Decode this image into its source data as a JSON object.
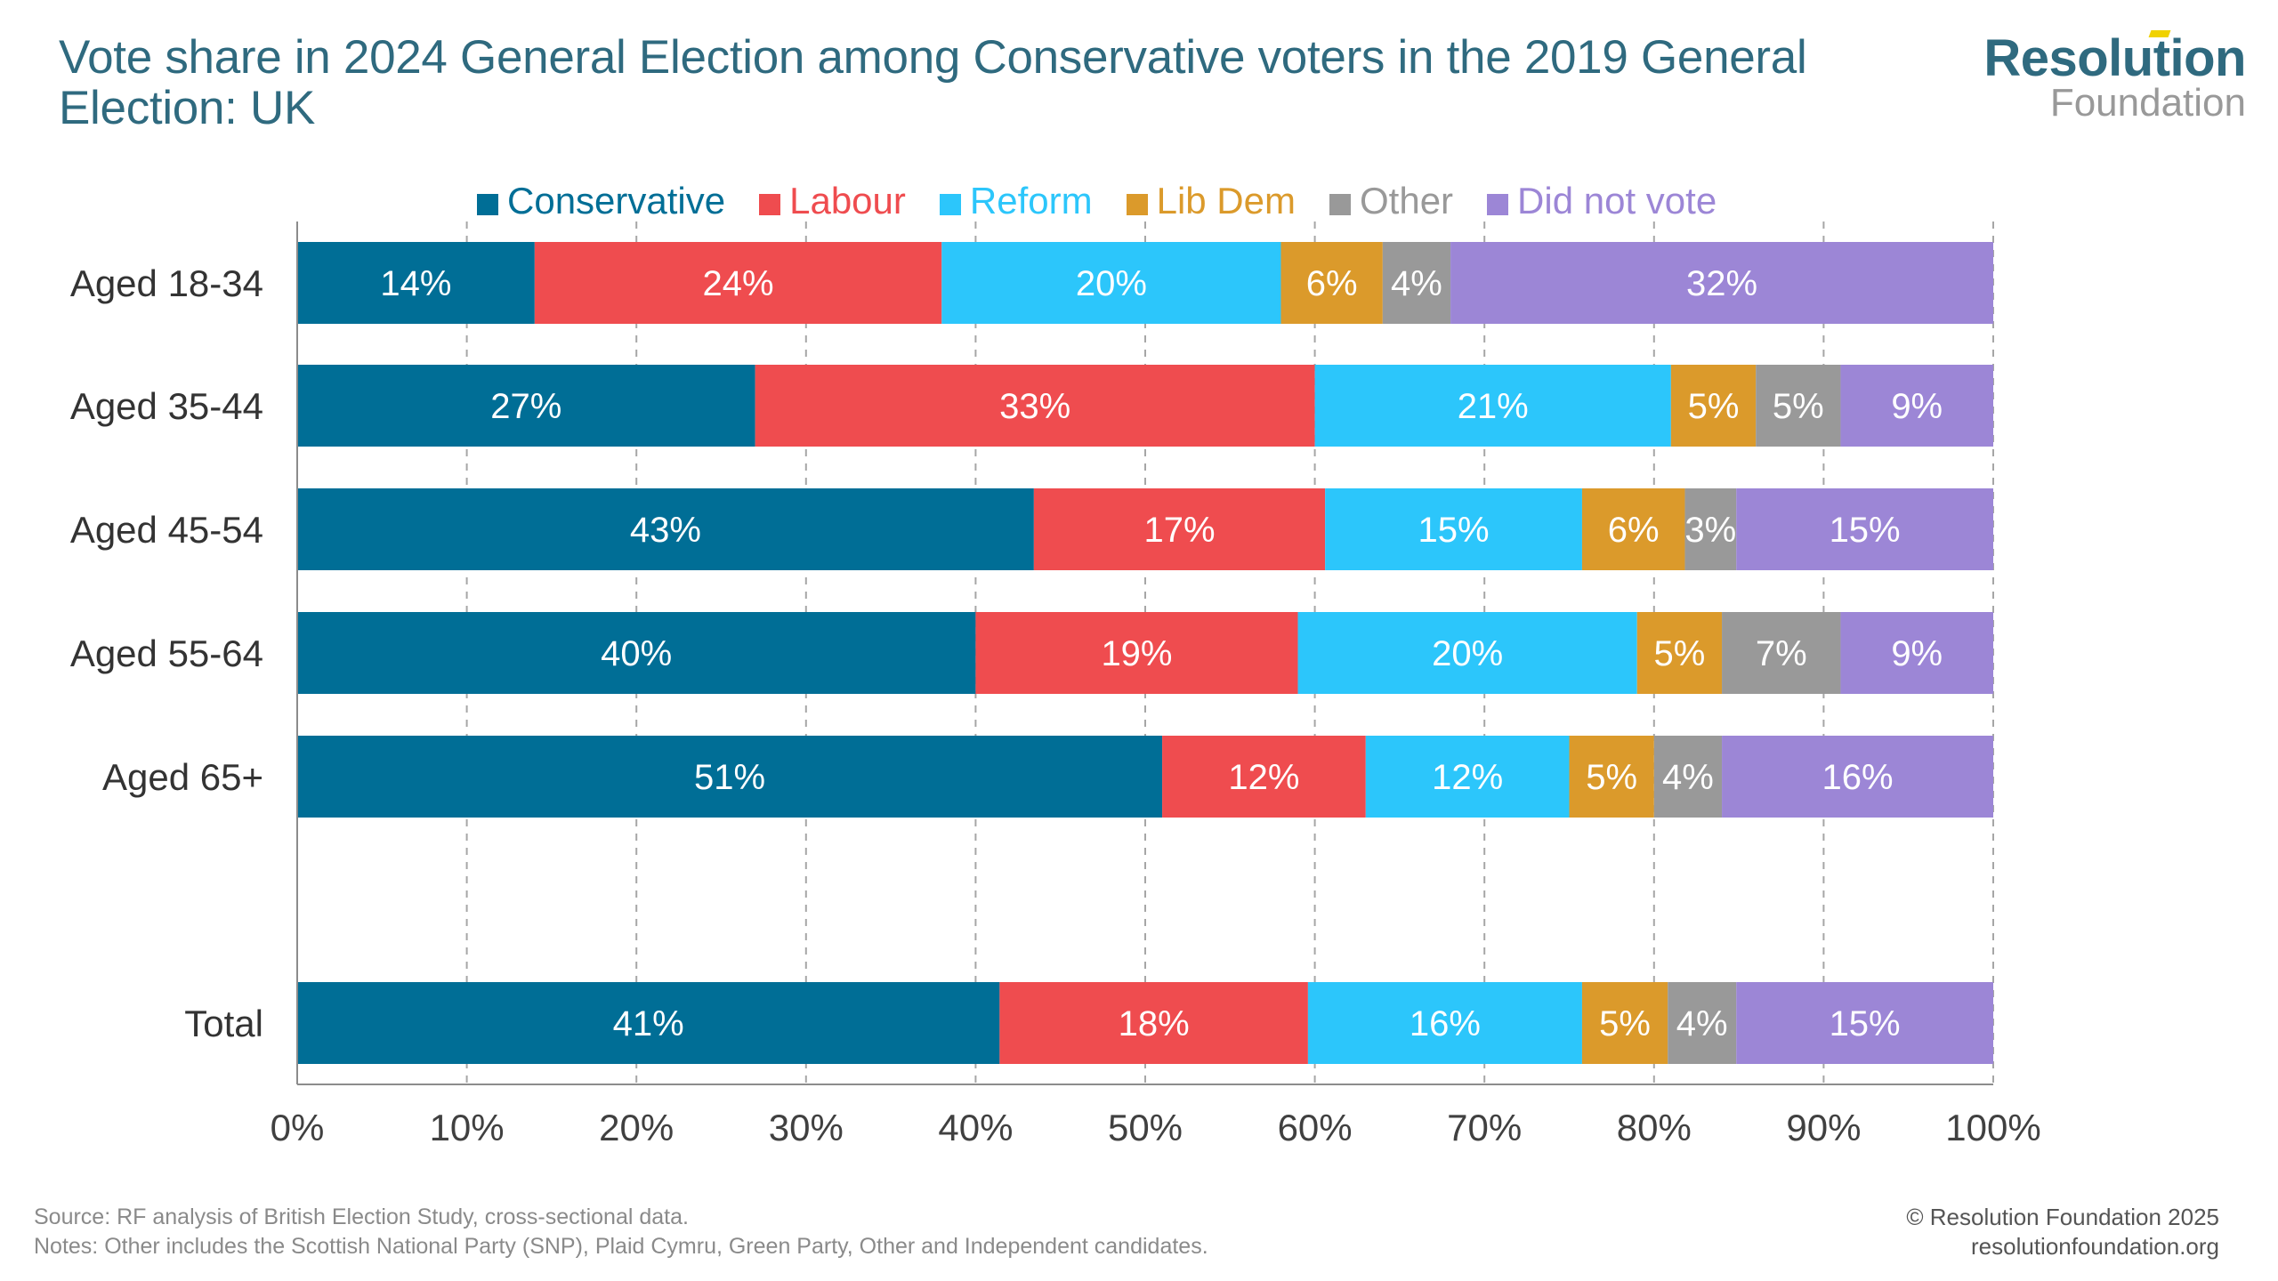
{
  "header": {
    "title": "Vote share in 2024 General Election among Conservative voters in the 2019 General Election: UK",
    "logo_top": "Resolution",
    "logo_bottom": "Foundation"
  },
  "footer": {
    "source": "Source: RF analysis of British Election Study, cross-sectional data.",
    "notes": "Notes: Other includes the Scottish National Party (SNP), Plaid Cymru, Green Party, Other and Independent candidates.",
    "copyright": "© Resolution Foundation 2025",
    "website": "resolutionfoundation.org"
  },
  "chart_data": {
    "type": "bar",
    "orientation": "horizontal",
    "stacked": true,
    "title": "Vote share in 2024 General Election among Conservative voters in the 2019 General Election: UK",
    "xlabel": "",
    "ylabel": "",
    "xlim": [
      0,
      100
    ],
    "x_ticks": [
      "0%",
      "10%",
      "20%",
      "30%",
      "40%",
      "50%",
      "60%",
      "70%",
      "80%",
      "90%",
      "100%"
    ],
    "grid": "vertical dashed",
    "legend_position": "top",
    "categories": [
      "Aged 18-34",
      "Aged 35-44",
      "Aged 45-54",
      "Aged 55-64",
      "Aged 65+",
      "Total"
    ],
    "series": [
      {
        "name": "Conservative",
        "color": "#006e96",
        "values": [
          14,
          27,
          43,
          40,
          51,
          41
        ]
      },
      {
        "name": "Labour",
        "color": "#ef4c4f",
        "values": [
          24,
          33,
          17,
          19,
          12,
          18
        ]
      },
      {
        "name": "Reform",
        "color": "#2cc6fb",
        "values": [
          20,
          21,
          15,
          20,
          12,
          16
        ]
      },
      {
        "name": "Lib Dem",
        "color": "#db9a2b",
        "values": [
          6,
          5,
          6,
          5,
          5,
          5
        ]
      },
      {
        "name": "Other",
        "color": "#999999",
        "values": [
          4,
          5,
          3,
          7,
          4,
          4
        ]
      },
      {
        "name": "Did not vote",
        "color": "#9c86d6",
        "values": [
          32,
          9,
          15,
          9,
          16,
          15
        ]
      }
    ],
    "value_label_suffix": "%"
  }
}
